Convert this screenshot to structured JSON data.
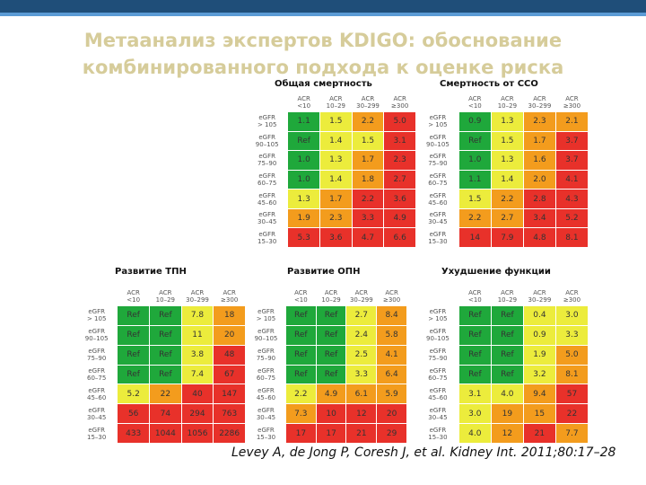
{
  "title_line1": "Метаанализ экспертов KDIGO: обоснование",
  "title_line2": "комбинированного подхода к оценке риска",
  "citation_text": "Levey A, de Jong P, Coresh J, et al. Kidney Int. 2011;80:17–28",
  "colors": {
    "green": "#1fa83b",
    "yellow": "#ecec3c",
    "orange": "#f39c1d",
    "red": "#e8312a"
  },
  "panels": [
    {
      "heading": "Общая смертность",
      "columns": [
        {
          "l1": "ACR",
          "l2": "<10"
        },
        {
          "l1": "ACR",
          "l2": "10–29"
        },
        {
          "l1": "ACR",
          "l2": "30–299"
        },
        {
          "l1": "ACR",
          "l2": "≥300"
        }
      ],
      "rows": [
        {
          "l1": "eGFR",
          "l2": "> 105",
          "cells": [
            {
              "v": "1.1",
              "c": "green"
            },
            {
              "v": "1.5",
              "c": "yellow"
            },
            {
              "v": "2.2",
              "c": "orange"
            },
            {
              "v": "5.0",
              "c": "red"
            }
          ]
        },
        {
          "l1": "eGFR",
          "l2": "90–105",
          "cells": [
            {
              "v": "Ref",
              "c": "green"
            },
            {
              "v": "1.4",
              "c": "yellow"
            },
            {
              "v": "1.5",
              "c": "yellow"
            },
            {
              "v": "3.1",
              "c": "red"
            }
          ]
        },
        {
          "l1": "eGFR",
          "l2": "75–90",
          "cells": [
            {
              "v": "1.0",
              "c": "green"
            },
            {
              "v": "1.3",
              "c": "yellow"
            },
            {
              "v": "1.7",
              "c": "orange"
            },
            {
              "v": "2.3",
              "c": "red"
            }
          ]
        },
        {
          "l1": "eGFR",
          "l2": "60–75",
          "cells": [
            {
              "v": "1.0",
              "c": "green"
            },
            {
              "v": "1.4",
              "c": "yellow"
            },
            {
              "v": "1.8",
              "c": "orange"
            },
            {
              "v": "2.7",
              "c": "red"
            }
          ]
        },
        {
          "l1": "eGFR",
          "l2": "45–60",
          "cells": [
            {
              "v": "1.3",
              "c": "yellow"
            },
            {
              "v": "1.7",
              "c": "orange"
            },
            {
              "v": "2.2",
              "c": "red"
            },
            {
              "v": "3.6",
              "c": "red"
            }
          ]
        },
        {
          "l1": "eGFR",
          "l2": "30–45",
          "cells": [
            {
              "v": "1.9",
              "c": "orange"
            },
            {
              "v": "2.3",
              "c": "orange"
            },
            {
              "v": "3.3",
              "c": "red"
            },
            {
              "v": "4.9",
              "c": "red"
            }
          ]
        },
        {
          "l1": "eGFR",
          "l2": "15–30",
          "cells": [
            {
              "v": "5.3",
              "c": "red"
            },
            {
              "v": "3.6",
              "c": "red"
            },
            {
              "v": "4.7",
              "c": "red"
            },
            {
              "v": "6.6",
              "c": "red"
            }
          ]
        }
      ]
    },
    {
      "heading": "Смертность от ССО",
      "columns": [
        {
          "l1": "ACR",
          "l2": "<10"
        },
        {
          "l1": "ACR",
          "l2": "10–29"
        },
        {
          "l1": "ACR",
          "l2": "30–299"
        },
        {
          "l1": "ACR",
          "l2": "≥300"
        }
      ],
      "rows": [
        {
          "l1": "eGFR",
          "l2": "> 105",
          "cells": [
            {
              "v": "0.9",
              "c": "green"
            },
            {
              "v": "1.3",
              "c": "yellow"
            },
            {
              "v": "2.3",
              "c": "orange"
            },
            {
              "v": "2.1",
              "c": "orange"
            }
          ]
        },
        {
          "l1": "eGFR",
          "l2": "90–105",
          "cells": [
            {
              "v": "Ref",
              "c": "green"
            },
            {
              "v": "1.5",
              "c": "yellow"
            },
            {
              "v": "1.7",
              "c": "orange"
            },
            {
              "v": "3.7",
              "c": "red"
            }
          ]
        },
        {
          "l1": "eGFR",
          "l2": "75–90",
          "cells": [
            {
              "v": "1.0",
              "c": "green"
            },
            {
              "v": "1.3",
              "c": "yellow"
            },
            {
              "v": "1.6",
              "c": "orange"
            },
            {
              "v": "3.7",
              "c": "red"
            }
          ]
        },
        {
          "l1": "eGFR",
          "l2": "60–75",
          "cells": [
            {
              "v": "1.1",
              "c": "green"
            },
            {
              "v": "1.4",
              "c": "yellow"
            },
            {
              "v": "2.0",
              "c": "orange"
            },
            {
              "v": "4.1",
              "c": "red"
            }
          ]
        },
        {
          "l1": "eGFR",
          "l2": "45–60",
          "cells": [
            {
              "v": "1.5",
              "c": "yellow"
            },
            {
              "v": "2.2",
              "c": "orange"
            },
            {
              "v": "2.8",
              "c": "red"
            },
            {
              "v": "4.3",
              "c": "red"
            }
          ]
        },
        {
          "l1": "eGFR",
          "l2": "30–45",
          "cells": [
            {
              "v": "2.2",
              "c": "orange"
            },
            {
              "v": "2.7",
              "c": "orange"
            },
            {
              "v": "3.4",
              "c": "red"
            },
            {
              "v": "5.2",
              "c": "red"
            }
          ]
        },
        {
          "l1": "eGFR",
          "l2": "15–30",
          "cells": [
            {
              "v": "14",
              "c": "red"
            },
            {
              "v": "7.9",
              "c": "red"
            },
            {
              "v": "4.8",
              "c": "red"
            },
            {
              "v": "8.1",
              "c": "red"
            }
          ]
        }
      ]
    },
    {
      "heading": "Развитие ТПН",
      "columns": [
        {
          "l1": "ACR",
          "l2": "<10"
        },
        {
          "l1": "ACR",
          "l2": "10–29"
        },
        {
          "l1": "ACR",
          "l2": "30–299"
        },
        {
          "l1": "ACR",
          "l2": "≥300"
        }
      ],
      "rows": [
        {
          "l1": "eGFR",
          "l2": "> 105",
          "cells": [
            {
              "v": "Ref",
              "c": "green"
            },
            {
              "v": "Ref",
              "c": "green"
            },
            {
              "v": "7.8",
              "c": "yellow"
            },
            {
              "v": "18",
              "c": "orange"
            }
          ]
        },
        {
          "l1": "eGFR",
          "l2": "90–105",
          "cells": [
            {
              "v": "Ref",
              "c": "green"
            },
            {
              "v": "Ref",
              "c": "green"
            },
            {
              "v": "11",
              "c": "yellow"
            },
            {
              "v": "20",
              "c": "orange"
            }
          ]
        },
        {
          "l1": "eGFR",
          "l2": "75–90",
          "cells": [
            {
              "v": "Ref",
              "c": "green"
            },
            {
              "v": "Ref",
              "c": "green"
            },
            {
              "v": "3.8",
              "c": "yellow"
            },
            {
              "v": "48",
              "c": "red"
            }
          ]
        },
        {
          "l1": "eGFR",
          "l2": "60–75",
          "cells": [
            {
              "v": "Ref",
              "c": "green"
            },
            {
              "v": "Ref",
              "c": "green"
            },
            {
              "v": "7.4",
              "c": "yellow"
            },
            {
              "v": "67",
              "c": "red"
            }
          ]
        },
        {
          "l1": "eGFR",
          "l2": "45–60",
          "cells": [
            {
              "v": "5.2",
              "c": "yellow"
            },
            {
              "v": "22",
              "c": "orange"
            },
            {
              "v": "40",
              "c": "red"
            },
            {
              "v": "147",
              "c": "red"
            }
          ]
        },
        {
          "l1": "eGFR",
          "l2": "30–45",
          "cells": [
            {
              "v": "56",
              "c": "red"
            },
            {
              "v": "74",
              "c": "red"
            },
            {
              "v": "294",
              "c": "red"
            },
            {
              "v": "763",
              "c": "red"
            }
          ]
        },
        {
          "l1": "eGFR",
          "l2": "15–30",
          "cells": [
            {
              "v": "433",
              "c": "red"
            },
            {
              "v": "1044",
              "c": "red"
            },
            {
              "v": "1056",
              "c": "red"
            },
            {
              "v": "2286",
              "c": "red"
            }
          ]
        }
      ]
    },
    {
      "heading": "Развитие ОПН",
      "columns": [
        {
          "l1": "ACR",
          "l2": "<10"
        },
        {
          "l1": "ACR",
          "l2": "10–29"
        },
        {
          "l1": "ACR",
          "l2": "30–299"
        },
        {
          "l1": "ACR",
          "l2": "≥300"
        }
      ],
      "rows": [
        {
          "l1": "eGFR",
          "l2": "> 105",
          "cells": [
            {
              "v": "Ref",
              "c": "green"
            },
            {
              "v": "Ref",
              "c": "green"
            },
            {
              "v": "2.7",
              "c": "yellow"
            },
            {
              "v": "8.4",
              "c": "orange"
            }
          ]
        },
        {
          "l1": "eGFR",
          "l2": "90–105",
          "cells": [
            {
              "v": "Ref",
              "c": "green"
            },
            {
              "v": "Ref",
              "c": "green"
            },
            {
              "v": "2.4",
              "c": "yellow"
            },
            {
              "v": "5.8",
              "c": "orange"
            }
          ]
        },
        {
          "l1": "eGFR",
          "l2": "75–90",
          "cells": [
            {
              "v": "Ref",
              "c": "green"
            },
            {
              "v": "Ref",
              "c": "green"
            },
            {
              "v": "2.5",
              "c": "yellow"
            },
            {
              "v": "4.1",
              "c": "orange"
            }
          ]
        },
        {
          "l1": "eGFR",
          "l2": "60–75",
          "cells": [
            {
              "v": "Ref",
              "c": "green"
            },
            {
              "v": "Ref",
              "c": "green"
            },
            {
              "v": "3.3",
              "c": "yellow"
            },
            {
              "v": "6.4",
              "c": "orange"
            }
          ]
        },
        {
          "l1": "eGFR",
          "l2": "45–60",
          "cells": [
            {
              "v": "2.2",
              "c": "yellow"
            },
            {
              "v": "4.9",
              "c": "orange"
            },
            {
              "v": "6.1",
              "c": "orange"
            },
            {
              "v": "5.9",
              "c": "orange"
            }
          ]
        },
        {
          "l1": "eGFR",
          "l2": "30–45",
          "cells": [
            {
              "v": "7.3",
              "c": "orange"
            },
            {
              "v": "10",
              "c": "red"
            },
            {
              "v": "12",
              "c": "red"
            },
            {
              "v": "20",
              "c": "red"
            }
          ]
        },
        {
          "l1": "eGFR",
          "l2": "15–30",
          "cells": [
            {
              "v": "17",
              "c": "red"
            },
            {
              "v": "17",
              "c": "red"
            },
            {
              "v": "21",
              "c": "red"
            },
            {
              "v": "29",
              "c": "red"
            }
          ]
        }
      ]
    },
    {
      "heading": "Ухудшение функции",
      "columns": [
        {
          "l1": "ACR",
          "l2": "<10"
        },
        {
          "l1": "ACR",
          "l2": "10–29"
        },
        {
          "l1": "ACR",
          "l2": "30–299"
        },
        {
          "l1": "ACR",
          "l2": "≥300"
        }
      ],
      "rows": [
        {
          "l1": "eGFR",
          "l2": "> 105",
          "cells": [
            {
              "v": "Ref",
              "c": "green"
            },
            {
              "v": "Ref",
              "c": "green"
            },
            {
              "v": "0.4",
              "c": "yellow"
            },
            {
              "v": "3.0",
              "c": "yellow"
            }
          ]
        },
        {
          "l1": "eGFR",
          "l2": "90–105",
          "cells": [
            {
              "v": "Ref",
              "c": "green"
            },
            {
              "v": "Ref",
              "c": "green"
            },
            {
              "v": "0.9",
              "c": "yellow"
            },
            {
              "v": "3.3",
              "c": "yellow"
            }
          ]
        },
        {
          "l1": "eGFR",
          "l2": "75–90",
          "cells": [
            {
              "v": "Ref",
              "c": "green"
            },
            {
              "v": "Ref",
              "c": "green"
            },
            {
              "v": "1.9",
              "c": "yellow"
            },
            {
              "v": "5.0",
              "c": "orange"
            }
          ]
        },
        {
          "l1": "eGFR",
          "l2": "60–75",
          "cells": [
            {
              "v": "Ref",
              "c": "green"
            },
            {
              "v": "Ref",
              "c": "green"
            },
            {
              "v": "3.2",
              "c": "yellow"
            },
            {
              "v": "8.1",
              "c": "orange"
            }
          ]
        },
        {
          "l1": "eGFR",
          "l2": "45–60",
          "cells": [
            {
              "v": "3.1",
              "c": "yellow"
            },
            {
              "v": "4.0",
              "c": "yellow"
            },
            {
              "v": "9.4",
              "c": "orange"
            },
            {
              "v": "57",
              "c": "red"
            }
          ]
        },
        {
          "l1": "eGFR",
          "l2": "30–45",
          "cells": [
            {
              "v": "3.0",
              "c": "yellow"
            },
            {
              "v": "19",
              "c": "orange"
            },
            {
              "v": "15",
              "c": "orange"
            },
            {
              "v": "22",
              "c": "red"
            }
          ]
        },
        {
          "l1": "eGFR",
          "l2": "15–30",
          "cells": [
            {
              "v": "4.0",
              "c": "yellow"
            },
            {
              "v": "12",
              "c": "orange"
            },
            {
              "v": "21",
              "c": "red"
            },
            {
              "v": "7.7",
              "c": "orange"
            }
          ]
        }
      ]
    }
  ]
}
